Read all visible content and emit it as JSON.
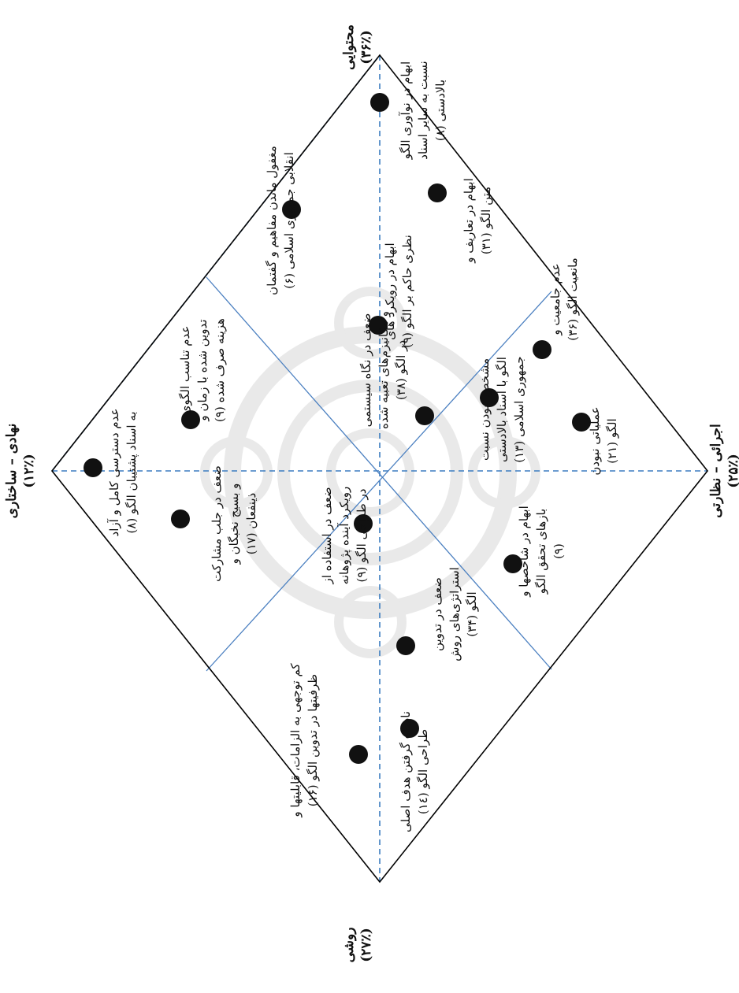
{
  "colors": {
    "frame": "#000000",
    "axis_dashed": "#3b7cc0",
    "sector_line": "#4a7fc0",
    "dot": "#111111",
    "watermark": "#d8d8d8"
  },
  "axes": {
    "top_left": {
      "title": "نهادی – ساختاری",
      "pct": "(۱۲٪)"
    },
    "top_right": {
      "title": "محتوایی",
      "pct": "(۳۶٪)"
    },
    "bottom_right": {
      "title": "اجرائی – نظارتی",
      "pct": "(۲۵٪)"
    },
    "bottom_left": {
      "title": "روشی",
      "pct": "(۲۷٪)"
    }
  },
  "items": [
    {
      "lines": [
        "عدم دسترسی کامل و آزاد",
        "به اسناد پشتیبان الگو (۸)"
      ]
    },
    {
      "lines": [
        "عدم تناسب الگوی",
        "تدوین شده با زمان و",
        "هزینه صرف شده (۹)"
      ]
    },
    {
      "lines": [
        "ضعف در جلب مشارکت",
        "و بسیج نخبگان و",
        "ذینفعان (۱۷)"
      ]
    },
    {
      "lines": [
        "مغفول ماندن مفاهیم و گفتمان",
        "انقلابی جمهوری اسلامی (۶)"
      ]
    },
    {
      "lines": [
        "ضعف در نگاه سیستمی",
        "و مکانیزم‌های تعبیه شده",
        "در الگو (۳۸)"
      ]
    },
    {
      "lines": [
        "ابهام در رویکرد های",
        "نظری حاکم بر الگو (۹)"
      ]
    },
    {
      "lines": [
        "ابهام در نوآوری الگو",
        "نسبت به سایر اسناد",
        "بالادستی (۸)"
      ]
    },
    {
      "lines": [
        "ابهام در تعاریف و",
        "متن الگو (۳۱)"
      ]
    },
    {
      "lines": [
        "عدم جامعیت و",
        "مانعیت الگو (۳۶)"
      ]
    },
    {
      "lines": [
        "مشخص نبودن نسبت",
        "الگو با اسناد بالادستی",
        "جمهوری اسلامی (۱۳)"
      ]
    },
    {
      "lines": [
        "عملیاتی نبودن",
        "الگو (۲۱)"
      ]
    },
    {
      "lines": [
        "ابهام در شاخصها و",
        "بازهای تحقق الگو",
        "(۹)"
      ]
    },
    {
      "lines": [
        "ضعف در استفاده از",
        "رویکرد آینده پژوهانه",
        "در طراحی الگو (۹)"
      ]
    },
    {
      "lines": [
        "ضعف در تدوین",
        "استراتژی‌های روش",
        "الگو (۳۴)"
      ]
    },
    {
      "lines": [
        "کم توجهی به الزامات، قابلیتها و",
        "ظرفیتها در تدوین الگو (۱۶)"
      ]
    },
    {
      "lines": [
        "نادیده گرفتن هدف اصلی",
        "طراحی الگو (۱٤)"
      ]
    }
  ]
}
